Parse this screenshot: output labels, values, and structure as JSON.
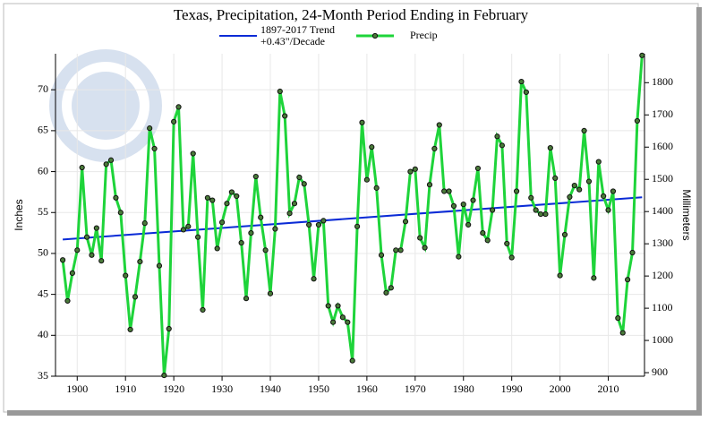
{
  "chart_data": {
    "type": "line",
    "title": "Texas, Precipitation, 24-Month Period Ending in February",
    "y_label": "Inches",
    "y2_label": "Millimeters",
    "xlim": [
      1895.5,
      2017.5
    ],
    "xticks": [
      1900,
      1910,
      1920,
      1930,
      1940,
      1950,
      1960,
      1970,
      1980,
      1990,
      2000,
      2010
    ],
    "ylim": [
      35,
      74.4
    ],
    "yticks": [
      35,
      40,
      45,
      50,
      55,
      60,
      65,
      70
    ],
    "y2lim": [
      889,
      1889.8
    ],
    "y2ticks": [
      900,
      1000,
      1100,
      1200,
      1300,
      1400,
      1500,
      1600,
      1700,
      1800
    ],
    "grid": true,
    "series": [
      {
        "name": "1897-2017 Trend",
        "name_line2": "+0.43\"/Decade",
        "color": "#0a2bd6",
        "markers": false,
        "x": [
          1897,
          2017
        ],
        "values": [
          51.7,
          56.86
        ]
      },
      {
        "name": "Precip",
        "color": "#1ed43a",
        "markers": true,
        "x": [
          1897,
          1898,
          1899,
          1900,
          1901,
          1902,
          1903,
          1904,
          1905,
          1906,
          1907,
          1908,
          1909,
          1910,
          1911,
          1912,
          1913,
          1914,
          1915,
          1916,
          1917,
          1918,
          1919,
          1920,
          1921,
          1922,
          1923,
          1924,
          1925,
          1926,
          1927,
          1928,
          1929,
          1930,
          1931,
          1932,
          1933,
          1934,
          1935,
          1936,
          1937,
          1938,
          1939,
          1940,
          1941,
          1942,
          1943,
          1944,
          1945,
          1946,
          1947,
          1948,
          1949,
          1950,
          1951,
          1952,
          1953,
          1954,
          1955,
          1956,
          1957,
          1958,
          1959,
          1960,
          1961,
          1962,
          1963,
          1964,
          1965,
          1966,
          1967,
          1968,
          1969,
          1970,
          1971,
          1972,
          1973,
          1974,
          1975,
          1976,
          1977,
          1978,
          1979,
          1980,
          1981,
          1982,
          1983,
          1984,
          1985,
          1986,
          1987,
          1988,
          1989,
          1990,
          1991,
          1992,
          1993,
          1994,
          1995,
          1996,
          1997,
          1998,
          1999,
          2000,
          2001,
          2002,
          2003,
          2004,
          2005,
          2006,
          2007,
          2008,
          2009,
          2010,
          2011,
          2012,
          2013,
          2014,
          2015,
          2016,
          2017
        ],
        "values": [
          49.2,
          44.2,
          47.6,
          50.4,
          60.5,
          52.0,
          49.8,
          53.1,
          49.1,
          60.9,
          61.4,
          56.8,
          55.0,
          47.3,
          40.7,
          44.7,
          49.0,
          53.7,
          65.3,
          62.8,
          48.5,
          35.1,
          40.8,
          66.1,
          67.9,
          52.9,
          53.3,
          62.2,
          52.0,
          43.1,
          56.8,
          56.5,
          50.6,
          53.8,
          56.1,
          57.5,
          57.0,
          51.3,
          44.5,
          52.5,
          59.4,
          54.4,
          50.4,
          45.1,
          53.0,
          69.8,
          66.8,
          54.9,
          56.1,
          59.3,
          58.5,
          53.5,
          46.9,
          53.5,
          54.0,
          43.6,
          41.6,
          43.6,
          42.2,
          41.6,
          36.9,
          53.3,
          66.0,
          59.0,
          63.0,
          58.0,
          49.8,
          45.2,
          45.8,
          50.4,
          50.4,
          53.9,
          60.0,
          60.3,
          51.9,
          50.7,
          58.4,
          62.8,
          65.7,
          57.6,
          57.6,
          55.8,
          49.6,
          56.0,
          53.5,
          56.5,
          60.4,
          52.5,
          51.6,
          55.3,
          64.3,
          63.2,
          51.2,
          49.5,
          57.6,
          71.0,
          69.7,
          56.8,
          55.3,
          54.8,
          54.8,
          62.9,
          59.2,
          47.3,
          52.3,
          56.9,
          58.3,
          57.8,
          65.0,
          58.8,
          47.0,
          61.2,
          57.0,
          55.3,
          57.6,
          42.1,
          40.3,
          46.8,
          50.1,
          66.2,
          74.2
        ]
      }
    ]
  }
}
